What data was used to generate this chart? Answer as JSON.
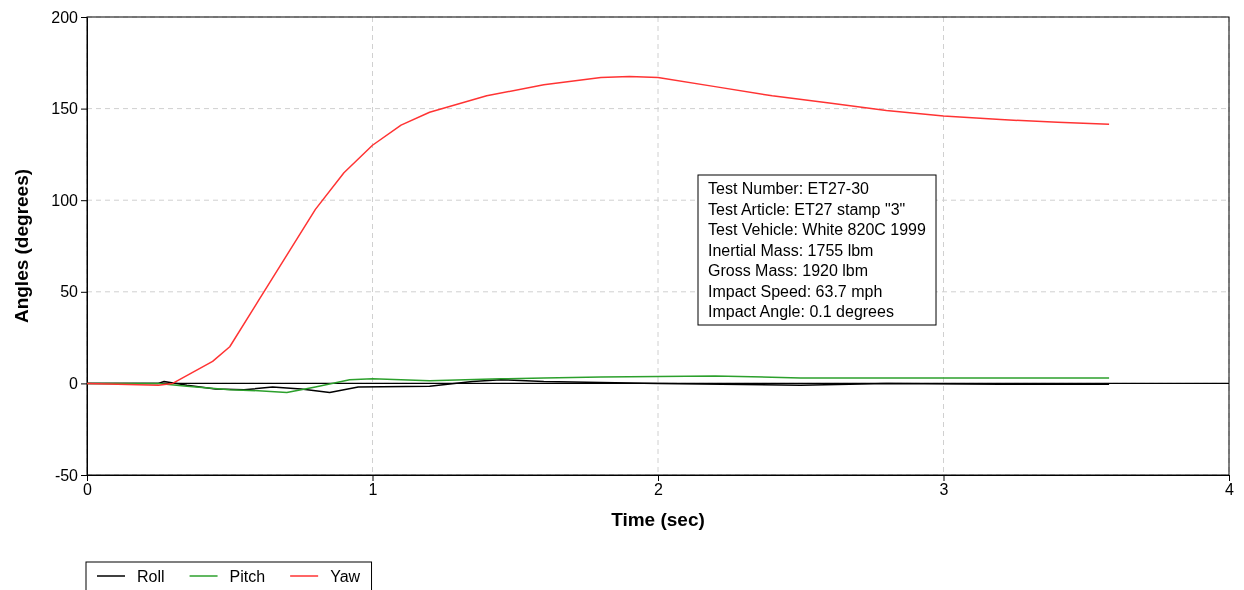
{
  "chart_data": {
    "type": "line",
    "xlabel": "Time (sec)",
    "ylabel": "Angles (degrees)",
    "xlim": [
      0,
      4
    ],
    "xticks": [
      0,
      1,
      2,
      3,
      4
    ],
    "ylim": [
      -50,
      200
    ],
    "yticks": [
      -50,
      0,
      50,
      100,
      150,
      200
    ],
    "grid": true,
    "legend": "bottom left",
    "line_style": "solid",
    "marker": "none",
    "ref_lines": [
      {
        "axis": "y",
        "value": 0,
        "color": "#000000"
      }
    ],
    "annotations": [
      "Test Number: ET27-30",
      "Test Article: ET27 stamp \"3\"",
      "Test Vehicle: White 820C 1999",
      "Inertial Mass: 1755 lbm",
      "Gross Mass: 1920 lbm",
      "Impact Speed: 63.7 mph",
      "Impact Angle: 0.1 degrees"
    ],
    "series": [
      {
        "name": "Roll",
        "color": "#000000",
        "x": [
          0,
          0.25,
          0.27,
          0.35,
          0.45,
          0.55,
          0.65,
          0.75,
          0.85,
          0.95,
          1.2,
          1.35,
          1.45,
          1.6,
          2.0,
          2.5,
          2.8,
          3.2,
          3.58
        ],
        "values": [
          0,
          0,
          1,
          -1,
          -3,
          -3.5,
          -2,
          -3,
          -5,
          -2,
          -1.5,
          1,
          2,
          1,
          0,
          -1,
          0,
          -0.5,
          -0.5
        ]
      },
      {
        "name": "Pitch",
        "color": "#2ca02c",
        "x": [
          0,
          0.25,
          0.35,
          0.5,
          0.6,
          0.7,
          0.8,
          0.92,
          1.0,
          1.2,
          1.45,
          1.6,
          1.8,
          2.2,
          2.5,
          3.0,
          3.58
        ],
        "values": [
          0,
          0,
          -1.5,
          -3.5,
          -4,
          -5,
          -2,
          2,
          2.5,
          1.5,
          2.5,
          3,
          3.5,
          4,
          3,
          3,
          3
        ]
      },
      {
        "name": "Yaw",
        "color": "#ff3333",
        "x": [
          0,
          0.25,
          0.3,
          0.44,
          0.5,
          0.6,
          0.7,
          0.8,
          0.9,
          1.0,
          1.1,
          1.2,
          1.4,
          1.6,
          1.8,
          1.9,
          2.0,
          2.2,
          2.4,
          2.6,
          2.8,
          3.0,
          3.2,
          3.4,
          3.58
        ],
        "values": [
          0,
          -1,
          0,
          12,
          20,
          45,
          70,
          95,
          115,
          130,
          141,
          148,
          157,
          163,
          167,
          167.5,
          167,
          162,
          157,
          153,
          149,
          146,
          144,
          142.5,
          141.5
        ]
      }
    ]
  }
}
